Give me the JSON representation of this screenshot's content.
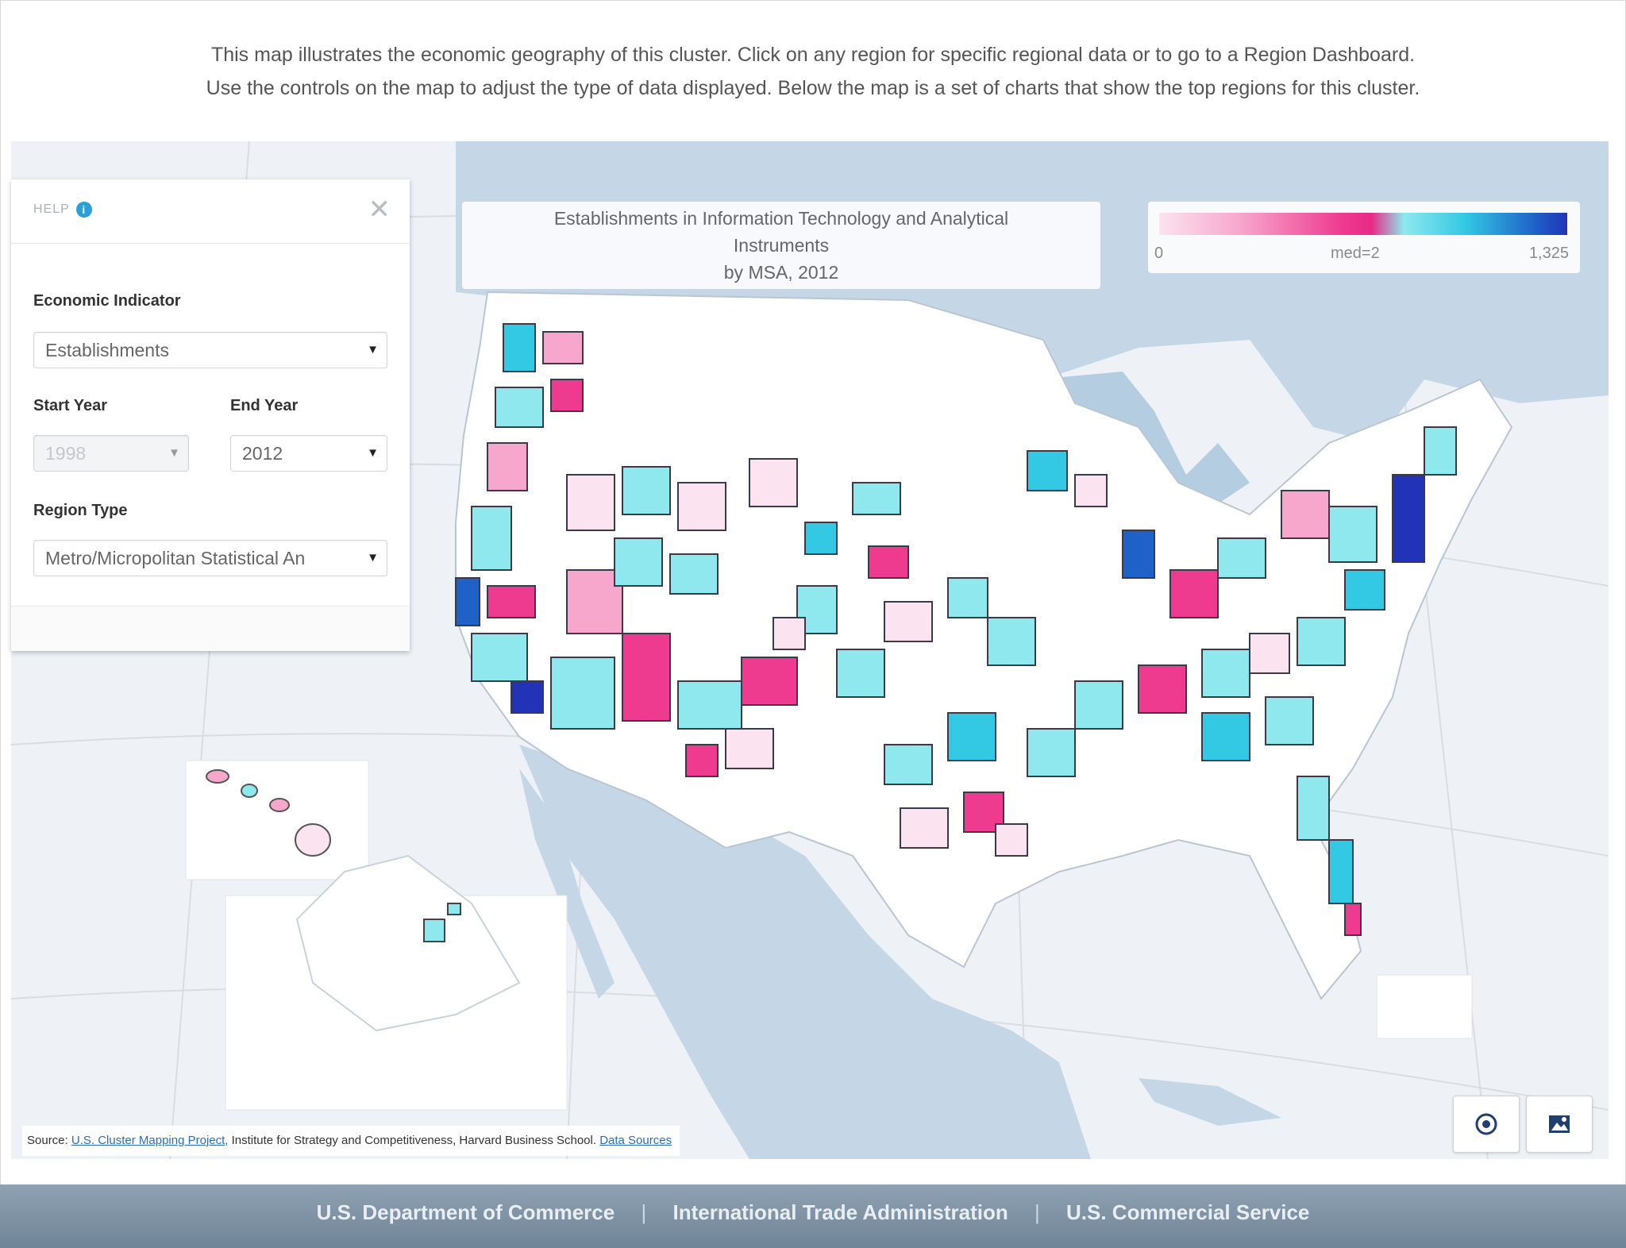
{
  "intro": {
    "line1": "This map illustrates the economic geography of this cluster. Click on any region for specific regional data or to go to a Region Dashboard.",
    "line2": "Use the controls on the map to adjust the type of data displayed. Below the map is a set of charts that show the top regions for this cluster."
  },
  "panel": {
    "help_label": "HELP",
    "close_glyph": "✕",
    "indicator_label": "Economic Indicator",
    "indicator_value": "Establishments",
    "start_year_label": "Start Year",
    "start_year_value": "1998",
    "end_year_label": "End Year",
    "end_year_value": "2012",
    "region_type_label": "Region Type",
    "region_type_value": "Metro/Micropolitan Statistical An"
  },
  "map_title": {
    "line1": "Establishments in Information Technology and Analytical",
    "line2": "Instruments",
    "line3": "by MSA, 2012"
  },
  "legend": {
    "min": "0",
    "median": "med=2",
    "max": "1,325",
    "colors": [
      "#fbe3ef",
      "#ee3a8f",
      "#8ee8ee",
      "#33c8e4",
      "#2233b8"
    ]
  },
  "source": {
    "prefix": "Source:",
    "link1": "U.S. Cluster Mapping Project,",
    "middle": "Institute for Strategy and Competitiveness, Harvard Business School.",
    "link2": "Data Sources"
  },
  "footer": {
    "item1": "U.S. Department of Commerce",
    "item2": "International Trade Administration",
    "item3": "U.S. Commercial Service",
    "separator": "|"
  },
  "icons": [
    "info-icon",
    "close-icon",
    "chevron-down-icon",
    "image-export-icon"
  ]
}
